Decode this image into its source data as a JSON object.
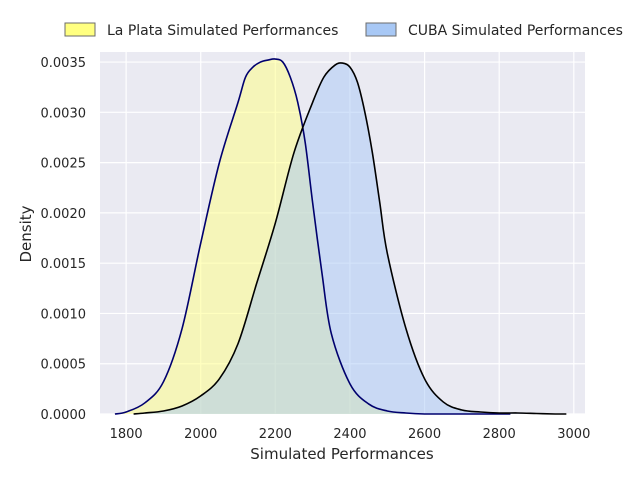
{
  "chart_data": {
    "type": "area",
    "title": "",
    "xlabel": "Simulated Performances",
    "ylabel": "Density",
    "xlim": [
      1730,
      3030
    ],
    "ylim": [
      0,
      0.0036
    ],
    "xticks": [
      1800,
      2000,
      2200,
      2400,
      2600,
      2800,
      3000
    ],
    "yticks": [
      0.0,
      0.0005,
      0.001,
      0.0015,
      0.002,
      0.0025,
      0.003,
      0.0035
    ],
    "ytick_labels": [
      "0.0000",
      "0.0005",
      "0.0010",
      "0.0015",
      "0.0020",
      "0.0025",
      "0.0030",
      "0.0035"
    ],
    "grid": true,
    "legend_placement": "top",
    "series": [
      {
        "name": "La Plata Simulated Performances",
        "fill": "#ffff80",
        "line": "#00006e",
        "x": [
          1770,
          1800,
          1850,
          1900,
          1950,
          2000,
          2050,
          2100,
          2120,
          2140,
          2160,
          2180,
          2200,
          2220,
          2240,
          2260,
          2280,
          2300,
          2325,
          2350,
          2400,
          2450,
          2500,
          2550,
          2600,
          2650,
          2700,
          2750,
          2830
        ],
        "y": [
          0.0,
          2e-05,
          0.00011,
          0.00032,
          0.00085,
          0.0017,
          0.0025,
          0.0031,
          0.00335,
          0.00345,
          0.0035,
          0.00352,
          0.00353,
          0.0035,
          0.00335,
          0.0031,
          0.0027,
          0.0021,
          0.0014,
          0.0008,
          0.0003,
          0.0001,
          3e-05,
          1e-05,
          0.0,
          0.0,
          0.0,
          0.0,
          0.0
        ]
      },
      {
        "name": "CUBA Simulated Performances",
        "fill": "#a8c8f5",
        "line": "#000000",
        "x": [
          1820,
          1850,
          1900,
          1950,
          2000,
          2050,
          2100,
          2150,
          2200,
          2250,
          2300,
          2330,
          2360,
          2380,
          2400,
          2420,
          2440,
          2460,
          2480,
          2500,
          2550,
          2600,
          2650,
          2700,
          2750,
          2800,
          2850,
          2900,
          2950,
          2980
        ],
        "y": [
          0.0,
          1e-05,
          3e-05,
          8e-05,
          0.00018,
          0.00035,
          0.0007,
          0.0013,
          0.0019,
          0.0026,
          0.0031,
          0.00335,
          0.00347,
          0.00349,
          0.00345,
          0.0033,
          0.003,
          0.0026,
          0.0021,
          0.0016,
          0.00085,
          0.00035,
          0.00012,
          4e-05,
          2e-05,
          1e-05,
          1e-05,
          5e-06,
          0.0,
          0.0
        ]
      }
    ]
  }
}
